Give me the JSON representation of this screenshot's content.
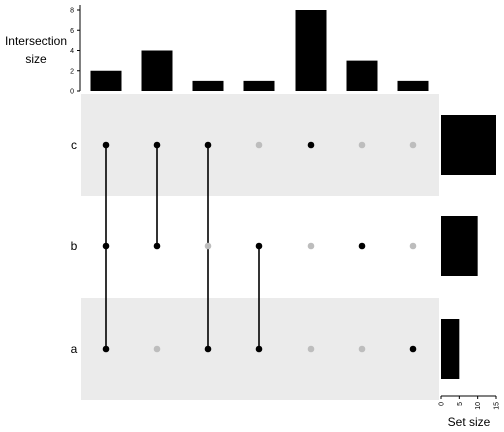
{
  "chart_data": {
    "type": "upset",
    "sets": [
      "c",
      "b",
      "a"
    ],
    "intersections": [
      {
        "members": [
          "c",
          "b",
          "a"
        ],
        "size": 2
      },
      {
        "members": [
          "c",
          "b"
        ],
        "size": 4
      },
      {
        "members": [
          "c",
          "a"
        ],
        "size": 1
      },
      {
        "members": [
          "b",
          "a"
        ],
        "size": 1
      },
      {
        "members": [
          "c"
        ],
        "size": 8
      },
      {
        "members": [
          "b"
        ],
        "size": 3
      },
      {
        "members": [
          "a"
        ],
        "size": 1
      }
    ],
    "set_sizes": {
      "c": 15,
      "b": 10,
      "a": 5
    },
    "intersection_axis": {
      "label_line1": "Intersection",
      "label_line2": "size",
      "ylim": [
        0,
        8
      ],
      "ticks": [
        "0",
        "2",
        "4",
        "6",
        "8"
      ]
    },
    "set_size_axis": {
      "label": "Set size",
      "xlim": [
        0,
        15
      ],
      "ticks": [
        "0",
        "5",
        "10",
        "15"
      ]
    },
    "colors": {
      "bar": "#000000",
      "active_dot": "#000000",
      "inactive_dot": "#bdbdbd",
      "band": "#ebebeb"
    }
  }
}
